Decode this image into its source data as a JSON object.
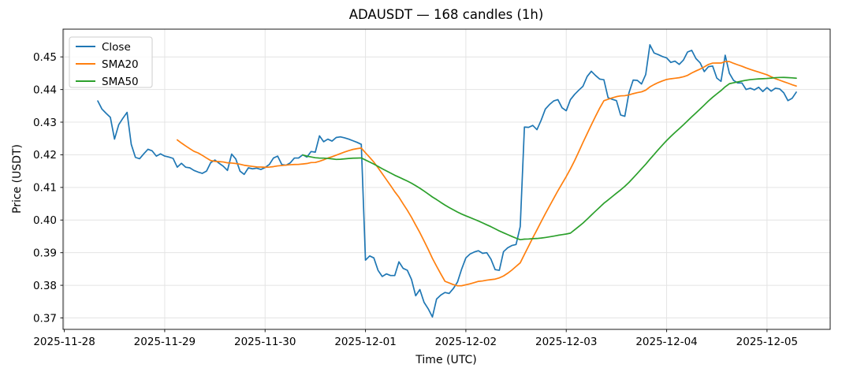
{
  "chart_data": {
    "type": "line",
    "title": "ADAUSDT — 168 candles (1h)",
    "xlabel": "Time (UTC)",
    "ylabel": "Price (USDT)",
    "symbol": "ADAUSDT",
    "candle_count": 168,
    "interval": "1h",
    "grid": true,
    "legend_position": "upper left",
    "x_start": "2025-11-28 08:00",
    "xlim_index": [
      -8.3,
      175.1
    ],
    "ylim": [
      0.3665,
      0.4585
    ],
    "y_ticks": [
      "0.37",
      "0.38",
      "0.39",
      "0.40",
      "0.41",
      "0.42",
      "0.43",
      "0.44",
      "0.45"
    ],
    "x_ticks": [
      {
        "index": -8,
        "label": "2025-11-28"
      },
      {
        "index": 16,
        "label": "2025-11-29"
      },
      {
        "index": 40,
        "label": "2025-11-30"
      },
      {
        "index": 64,
        "label": "2025-12-01"
      },
      {
        "index": 88,
        "label": "2025-12-02"
      },
      {
        "index": 112,
        "label": "2025-12-03"
      },
      {
        "index": 136,
        "label": "2025-12-04"
      },
      {
        "index": 160,
        "label": "2025-12-05"
      }
    ],
    "series": [
      {
        "name": "Close",
        "color": "#1f77b4",
        "kind": "raw",
        "values": [
          0.4365,
          0.434,
          0.4327,
          0.4315,
          0.4248,
          0.4292,
          0.4312,
          0.433,
          0.4232,
          0.4192,
          0.4188,
          0.4203,
          0.4217,
          0.4212,
          0.4196,
          0.4203,
          0.4196,
          0.4193,
          0.4189,
          0.4162,
          0.4174,
          0.4162,
          0.416,
          0.4152,
          0.4147,
          0.4143,
          0.415,
          0.4176,
          0.4184,
          0.4174,
          0.4165,
          0.4152,
          0.4202,
          0.4187,
          0.415,
          0.414,
          0.416,
          0.4157,
          0.4159,
          0.4155,
          0.4161,
          0.417,
          0.419,
          0.4196,
          0.417,
          0.4168,
          0.4175,
          0.419,
          0.419,
          0.42,
          0.4193,
          0.421,
          0.4208,
          0.4258,
          0.424,
          0.4248,
          0.4242,
          0.4253,
          0.4255,
          0.4252,
          0.4248,
          0.4243,
          0.4238,
          0.4232,
          0.3877,
          0.389,
          0.3884,
          0.3846,
          0.3827,
          0.3835,
          0.383,
          0.383,
          0.3872,
          0.3852,
          0.3846,
          0.3818,
          0.3768,
          0.3787,
          0.3748,
          0.3728,
          0.3703,
          0.3758,
          0.377,
          0.3778,
          0.3775,
          0.379,
          0.381,
          0.385,
          0.3884,
          0.3896,
          0.3902,
          0.3906,
          0.3898,
          0.39,
          0.388,
          0.3848,
          0.3846,
          0.3903,
          0.3915,
          0.3922,
          0.3925,
          0.398,
          0.4285,
          0.4284,
          0.429,
          0.4277,
          0.4306,
          0.434,
          0.4354,
          0.4365,
          0.4369,
          0.4344,
          0.4335,
          0.4369,
          0.4385,
          0.4398,
          0.441,
          0.444,
          0.4456,
          0.4443,
          0.4432,
          0.443,
          0.4375,
          0.437,
          0.4366,
          0.4322,
          0.4318,
          0.439,
          0.4429,
          0.4428,
          0.4417,
          0.4446,
          0.4537,
          0.4512,
          0.4507,
          0.4501,
          0.4497,
          0.4483,
          0.4487,
          0.4477,
          0.449,
          0.4515,
          0.452,
          0.4495,
          0.4482,
          0.4455,
          0.447,
          0.4472,
          0.4435,
          0.4425,
          0.4505,
          0.445,
          0.4428,
          0.442,
          0.442,
          0.44,
          0.4404,
          0.4399,
          0.4407,
          0.4394,
          0.4406,
          0.4395,
          0.4404,
          0.4402,
          0.439,
          0.4366,
          0.4373,
          0.4392
        ]
      },
      {
        "name": "SMA20",
        "color": "#ff7f0e",
        "kind": "sma",
        "window": 20,
        "source": "Close"
      },
      {
        "name": "SMA50",
        "color": "#2ca02c",
        "kind": "sma",
        "window": 50,
        "source": "Close"
      }
    ],
    "style": {
      "grid_color": "#e4e4e4",
      "spine_color": "#1a1a1a",
      "background": "#ffffff",
      "line_width": 1.7
    }
  }
}
